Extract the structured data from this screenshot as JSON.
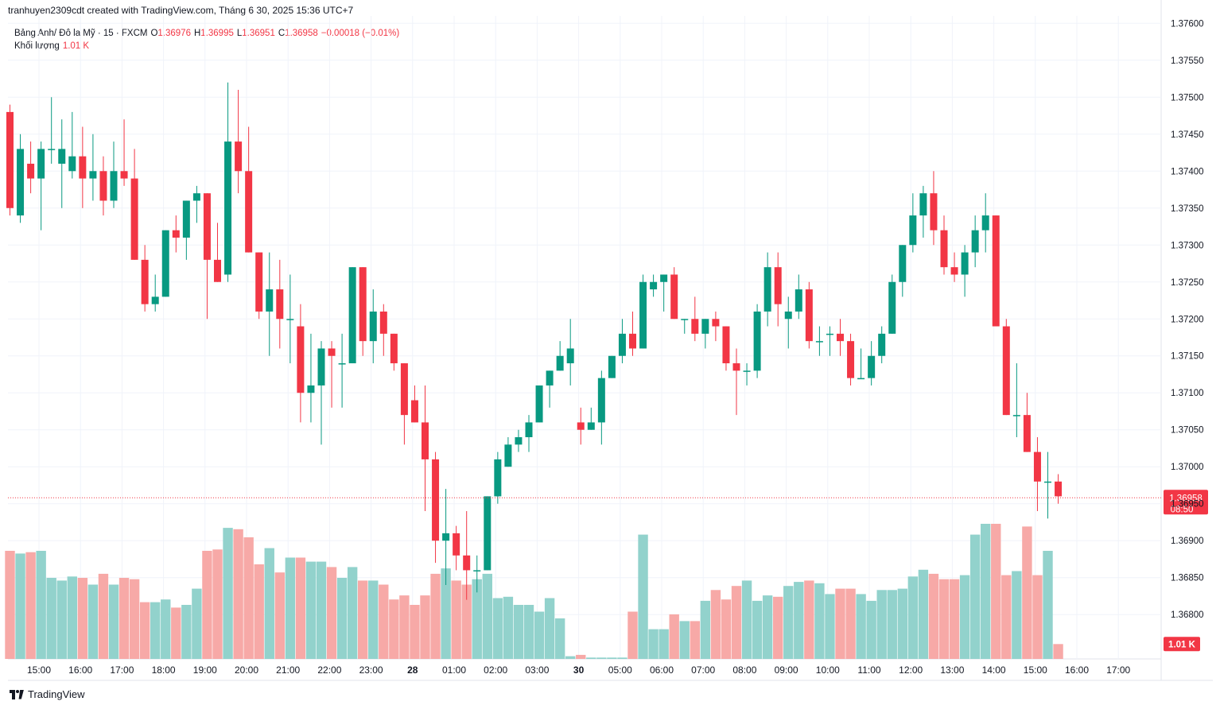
{
  "header": {
    "creator_text": "tranhuyen2309cdt created with TradingView.com, Tháng 6 30, 2025 15:36 UTC+7"
  },
  "legend": {
    "symbol": "Bảng Anh/ Đô la Mỹ · 15 · FXCM",
    "o_label": "O",
    "o_value": "1.36976",
    "h_label": "H",
    "h_value": "1.36995",
    "l_label": "L",
    "l_value": "1.36951",
    "c_label": "C",
    "c_value": "1.36958",
    "change": "−0.00018 (−0.01%)",
    "volume_label": "Khối lượng",
    "volume_value": "1.01 K"
  },
  "footer": {
    "brand": "TradingView"
  },
  "colors": {
    "up": "#089981",
    "down": "#f23645",
    "vol_up": "#92d2cc",
    "vol_down": "#f7a9a7",
    "grid": "#f0f3fa",
    "axis_text": "#131722"
  },
  "chart_data": {
    "type": "candlestick",
    "symbol": "GBP/USD",
    "interval": "15",
    "y_range": [
      1.3674,
      1.3761
    ],
    "y_ticks": [
      "1.37600",
      "1.37550",
      "1.37500",
      "1.37450",
      "1.37400",
      "1.37350",
      "1.37300",
      "1.37250",
      "1.37200",
      "1.37150",
      "1.37100",
      "1.37050",
      "1.37000",
      "1.36950",
      "1.36900",
      "1.36850",
      "1.36800"
    ],
    "y_tick_values": [
      1.376,
      1.3755,
      1.375,
      1.3745,
      1.374,
      1.3735,
      1.373,
      1.3725,
      1.372,
      1.3715,
      1.371,
      1.3705,
      1.37,
      1.3695,
      1.369,
      1.3685,
      1.368
    ],
    "x_ticks": [
      {
        "label": "15:00",
        "bar": 2
      },
      {
        "label": "16:00",
        "bar": 6
      },
      {
        "label": "17:00",
        "bar": 10
      },
      {
        "label": "18:00",
        "bar": 14
      },
      {
        "label": "19:00",
        "bar": 18
      },
      {
        "label": "20:00",
        "bar": 22
      },
      {
        "label": "21:00",
        "bar": 26
      },
      {
        "label": "22:00",
        "bar": 30
      },
      {
        "label": "23:00",
        "bar": 34
      },
      {
        "label": "28",
        "bar": 38
      },
      {
        "label": "01:00",
        "bar": 42
      },
      {
        "label": "02:00",
        "bar": 46
      },
      {
        "label": "03:00",
        "bar": 50
      },
      {
        "label": "30",
        "bar": 54
      },
      {
        "label": "05:00",
        "bar": 58
      },
      {
        "label": "06:00",
        "bar": 62
      },
      {
        "label": "07:00",
        "bar": 66
      },
      {
        "label": "08:00",
        "bar": 70
      },
      {
        "label": "09:00",
        "bar": 74
      },
      {
        "label": "10:00",
        "bar": 78
      },
      {
        "label": "11:00",
        "bar": 82
      },
      {
        "label": "12:00",
        "bar": 86
      },
      {
        "label": "13:00",
        "bar": 90
      },
      {
        "label": "14:00",
        "bar": 94
      },
      {
        "label": "15:00",
        "bar": 98
      },
      {
        "label": "16:00",
        "bar": 102
      },
      {
        "label": "17:00",
        "bar": 106
      }
    ],
    "last_price": "1.36958",
    "countdown": "08:50",
    "last_volume": "1.01 K",
    "ohlc": [
      [
        1.3748,
        1.3749,
        1.3734,
        1.3735
      ],
      [
        1.3734,
        1.3745,
        1.3733,
        1.3743
      ],
      [
        1.3741,
        1.3744,
        1.3737,
        1.3739
      ],
      [
        1.3739,
        1.3744,
        1.3732,
        1.3743
      ],
      [
        1.3743,
        1.375,
        1.3741,
        1.3743
      ],
      [
        1.3741,
        1.3747,
        1.3735,
        1.3743
      ],
      [
        1.374,
        1.3748,
        1.3739,
        1.3742
      ],
      [
        1.3742,
        1.3746,
        1.3735,
        1.3739
      ],
      [
        1.3739,
        1.3745,
        1.3736,
        1.374
      ],
      [
        1.374,
        1.3742,
        1.3734,
        1.3736
      ],
      [
        1.3736,
        1.3744,
        1.3735,
        1.374
      ],
      [
        1.374,
        1.3747,
        1.3738,
        1.3739
      ],
      [
        1.3739,
        1.3743,
        1.3728,
        1.3728
      ],
      [
        1.3728,
        1.373,
        1.3721,
        1.3722
      ],
      [
        1.3722,
        1.3726,
        1.3721,
        1.3723
      ],
      [
        1.3723,
        1.3732,
        1.3723,
        1.3732
      ],
      [
        1.3732,
        1.3734,
        1.3729,
        1.3731
      ],
      [
        1.3731,
        1.3736,
        1.3728,
        1.3736
      ],
      [
        1.3736,
        1.3738,
        1.3733,
        1.3737
      ],
      [
        1.3737,
        1.3737,
        1.372,
        1.3728
      ],
      [
        1.3728,
        1.3733,
        1.3725,
        1.3725
      ],
      [
        1.3726,
        1.3752,
        1.3725,
        1.3744
      ],
      [
        1.3744,
        1.3751,
        1.3737,
        1.374
      ],
      [
        1.374,
        1.3746,
        1.3729,
        1.3729
      ],
      [
        1.3729,
        1.3729,
        1.372,
        1.3721
      ],
      [
        1.3721,
        1.3729,
        1.3715,
        1.3724
      ],
      [
        1.3724,
        1.3728,
        1.3716,
        1.372
      ],
      [
        1.372,
        1.3726,
        1.3714,
        1.372
      ],
      [
        1.3719,
        1.3722,
        1.3706,
        1.371
      ],
      [
        1.371,
        1.3718,
        1.3706,
        1.3711
      ],
      [
        1.3711,
        1.3717,
        1.3703,
        1.3716
      ],
      [
        1.3716,
        1.3717,
        1.3708,
        1.3715
      ],
      [
        1.3714,
        1.3718,
        1.3708,
        1.3714
      ],
      [
        1.3714,
        1.3727,
        1.3714,
        1.3727
      ],
      [
        1.3727,
        1.3727,
        1.3715,
        1.3717
      ],
      [
        1.3717,
        1.3724,
        1.3714,
        1.3721
      ],
      [
        1.3721,
        1.3722,
        1.3715,
        1.3718
      ],
      [
        1.3718,
        1.3718,
        1.3713,
        1.3714
      ],
      [
        1.3714,
        1.3714,
        1.3703,
        1.3707
      ],
      [
        1.3709,
        1.3711,
        1.3706,
        1.3706
      ],
      [
        1.3706,
        1.3711,
        1.3694,
        1.3701
      ],
      [
        1.3701,
        1.3702,
        1.3687,
        1.369
      ],
      [
        1.369,
        1.3697,
        1.3684,
        1.3691
      ],
      [
        1.3691,
        1.3692,
        1.3686,
        1.3688
      ],
      [
        1.3688,
        1.3694,
        1.3682,
        1.3686
      ],
      [
        1.3686,
        1.3688,
        1.3683,
        1.3686
      ],
      [
        1.3686,
        1.3696,
        1.3686,
        1.3696
      ],
      [
        1.3696,
        1.3702,
        1.3695,
        1.3701
      ],
      [
        1.37,
        1.3704,
        1.37,
        1.3703
      ],
      [
        1.3703,
        1.3705,
        1.3702,
        1.3704
      ],
      [
        1.3704,
        1.3707,
        1.3702,
        1.3706
      ],
      [
        1.3706,
        1.3711,
        1.3706,
        1.3711
      ],
      [
        1.3711,
        1.3713,
        1.3708,
        1.3713
      ],
      [
        1.3713,
        1.3717,
        1.3713,
        1.3715
      ],
      [
        1.3714,
        1.372,
        1.3711,
        1.3716
      ],
      [
        1.3706,
        1.3708,
        1.3703,
        1.3705
      ],
      [
        1.3705,
        1.3708,
        1.3705,
        1.3706
      ],
      [
        1.3706,
        1.3713,
        1.3703,
        1.3712
      ],
      [
        1.3712,
        1.3715,
        1.3712,
        1.3715
      ],
      [
        1.3715,
        1.372,
        1.3714,
        1.3718
      ],
      [
        1.3718,
        1.3721,
        1.3715,
        1.3716
      ],
      [
        1.3716,
        1.3726,
        1.3716,
        1.3725
      ],
      [
        1.3724,
        1.3726,
        1.3723,
        1.3725
      ],
      [
        1.3725,
        1.3726,
        1.3721,
        1.3726
      ],
      [
        1.3726,
        1.3727,
        1.372,
        1.372
      ],
      [
        1.372,
        1.372,
        1.3718,
        1.372
      ],
      [
        1.372,
        1.3723,
        1.3717,
        1.3718
      ],
      [
        1.3718,
        1.372,
        1.3716,
        1.372
      ],
      [
        1.372,
        1.3721,
        1.3717,
        1.3719
      ],
      [
        1.3719,
        1.3719,
        1.3713,
        1.3714
      ],
      [
        1.3714,
        1.3716,
        1.3707,
        1.3713
      ],
      [
        1.3713,
        1.3714,
        1.3711,
        1.3713
      ],
      [
        1.3713,
        1.3722,
        1.3712,
        1.3721
      ],
      [
        1.3721,
        1.3729,
        1.3719,
        1.3727
      ],
      [
        1.3727,
        1.3729,
        1.3719,
        1.3722
      ],
      [
        1.372,
        1.3723,
        1.3716,
        1.3721
      ],
      [
        1.3721,
        1.3726,
        1.372,
        1.3724
      ],
      [
        1.3724,
        1.3725,
        1.3716,
        1.3717
      ],
      [
        1.3717,
        1.3719,
        1.3715,
        1.3717
      ],
      [
        1.3718,
        1.3719,
        1.3715,
        1.3718
      ],
      [
        1.3718,
        1.372,
        1.3715,
        1.3717
      ],
      [
        1.3717,
        1.3718,
        1.3711,
        1.3712
      ],
      [
        1.3712,
        1.3716,
        1.3712,
        1.3712
      ],
      [
        1.3712,
        1.3717,
        1.3711,
        1.3715
      ],
      [
        1.3715,
        1.3719,
        1.3714,
        1.3718
      ],
      [
        1.3718,
        1.3726,
        1.3718,
        1.3725
      ],
      [
        1.3725,
        1.373,
        1.3723,
        1.373
      ],
      [
        1.373,
        1.3737,
        1.3729,
        1.3734
      ],
      [
        1.3734,
        1.3738,
        1.3731,
        1.3737
      ],
      [
        1.3737,
        1.374,
        1.373,
        1.3732
      ],
      [
        1.3732,
        1.3734,
        1.3726,
        1.3727
      ],
      [
        1.3727,
        1.3729,
        1.3725,
        1.3726
      ],
      [
        1.3726,
        1.373,
        1.3723,
        1.3729
      ],
      [
        1.3729,
        1.3734,
        1.3727,
        1.3732
      ],
      [
        1.3732,
        1.3737,
        1.3729,
        1.3734
      ],
      [
        1.3734,
        1.3734,
        1.3719,
        1.3719
      ],
      [
        1.3719,
        1.372,
        1.3707,
        1.3707
      ],
      [
        1.3707,
        1.3714,
        1.3704,
        1.3707
      ],
      [
        1.3707,
        1.371,
        1.3702,
        1.3702
      ],
      [
        1.3702,
        1.3704,
        1.3694,
        1.3698
      ],
      [
        1.3698,
        1.3702,
        1.3693,
        1.3698
      ],
      [
        1.3698,
        1.3699,
        1.3695,
        1.3696
      ]
    ],
    "volume": [
      80,
      78,
      79,
      80,
      60,
      58,
      61,
      60,
      55,
      63,
      55,
      60,
      59,
      42,
      42,
      44,
      38,
      40,
      52,
      80,
      81,
      97,
      96,
      90,
      70,
      82,
      64,
      75,
      75,
      72,
      72,
      68,
      60,
      68,
      58,
      58,
      55,
      44,
      47,
      40,
      47,
      63,
      67,
      58,
      55,
      59,
      63,
      45,
      46,
      40,
      40,
      35,
      45,
      30,
      2,
      3,
      1,
      1,
      1,
      1,
      35,
      92,
      22,
      22,
      33,
      28,
      28,
      43,
      51,
      44,
      54,
      58,
      43,
      47,
      46,
      54,
      57,
      58,
      56,
      48,
      52,
      52,
      48,
      43,
      51,
      51,
      52,
      61,
      66,
      63,
      59,
      59,
      62,
      92,
      100,
      100,
      62,
      65,
      98,
      62,
      80,
      11
    ]
  }
}
